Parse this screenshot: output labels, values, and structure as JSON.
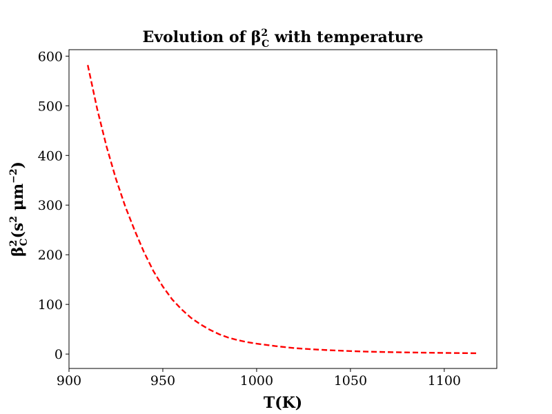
{
  "chart_data": {
    "type": "line",
    "title": {
      "prefix": "Evolution of β",
      "sub": "C",
      "sup": "2",
      "suffix": " with temperature"
    },
    "xlabel": "T(K)",
    "ylabel": {
      "prefix": "β",
      "sub": "C",
      "sup": "2",
      "suffix_open": "(s",
      "unit_sup1": "2",
      "unit_mid": " μm",
      "unit_sup2": "−2",
      "suffix_close": ")"
    },
    "xlim": [
      900,
      1128
    ],
    "ylim": [
      -29,
      613
    ],
    "xticks": [
      900,
      950,
      1000,
      1050,
      1100
    ],
    "yticks": [
      0,
      100,
      200,
      300,
      400,
      500,
      600
    ],
    "grid": false,
    "series": [
      {
        "color": "#ff0000",
        "line_style": "dashed",
        "x": [
          910,
          915,
          920,
          925,
          930,
          935,
          940,
          945,
          950,
          955,
          960,
          965,
          970,
          975,
          980,
          985,
          990,
          995,
          1000,
          1010,
          1020,
          1030,
          1040,
          1050,
          1060,
          1070,
          1080,
          1090,
          1100,
          1110,
          1118
        ],
        "y": [
          582,
          494,
          418,
          353,
          297,
          249,
          205,
          167,
          136,
          110,
          90,
          73,
          60,
          49,
          40,
          33,
          28,
          24,
          21,
          16,
          12,
          9.5,
          7.5,
          6,
          4.8,
          4,
          3.3,
          2.8,
          2.3,
          1.9,
          1.6
        ]
      }
    ]
  }
}
